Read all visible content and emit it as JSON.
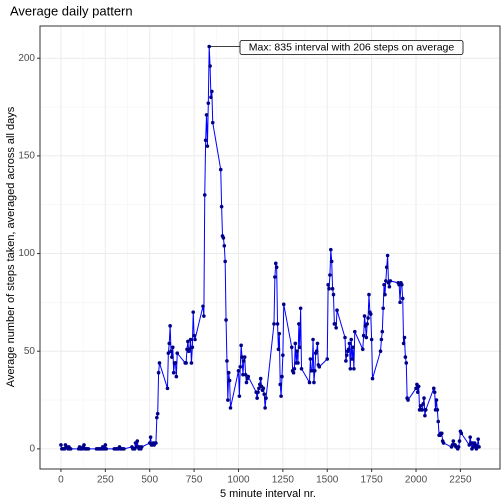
{
  "chart_data": {
    "type": "line",
    "title": "Average daily pattern",
    "x_label": "5 minute interval nr.",
    "y_label": "Average number of steps taken, averaged across all days",
    "annotation": "Max: 835 interval with 206 steps on average",
    "x": [
      0,
      5,
      10,
      15,
      20,
      25,
      30,
      35,
      40,
      45,
      50,
      55,
      100,
      105,
      110,
      115,
      120,
      125,
      130,
      135,
      140,
      145,
      150,
      155,
      200,
      205,
      210,
      215,
      220,
      225,
      230,
      235,
      240,
      245,
      250,
      255,
      300,
      305,
      310,
      315,
      320,
      325,
      330,
      335,
      340,
      345,
      350,
      355,
      400,
      405,
      410,
      415,
      420,
      425,
      430,
      435,
      440,
      445,
      450,
      455,
      500,
      505,
      510,
      515,
      520,
      525,
      530,
      535,
      540,
      545,
      550,
      555,
      600,
      605,
      610,
      615,
      620,
      625,
      630,
      635,
      640,
      645,
      650,
      655,
      700,
      705,
      710,
      715,
      720,
      725,
      730,
      735,
      740,
      745,
      750,
      755,
      800,
      805,
      810,
      815,
      820,
      825,
      830,
      835,
      840,
      845,
      850,
      855,
      900,
      905,
      910,
      915,
      920,
      925,
      930,
      935,
      940,
      945,
      950,
      955,
      1000,
      1005,
      1010,
      1015,
      1020,
      1025,
      1030,
      1035,
      1040,
      1045,
      1050,
      1055,
      1100,
      1105,
      1110,
      1115,
      1120,
      1125,
      1130,
      1135,
      1140,
      1145,
      1150,
      1155,
      1200,
      1205,
      1210,
      1215,
      1220,
      1225,
      1230,
      1235,
      1240,
      1245,
      1250,
      1255,
      1300,
      1305,
      1310,
      1315,
      1320,
      1325,
      1330,
      1335,
      1340,
      1345,
      1350,
      1355,
      1400,
      1405,
      1410,
      1415,
      1420,
      1425,
      1430,
      1435,
      1440,
      1445,
      1450,
      1455,
      1500,
      1505,
      1510,
      1515,
      1520,
      1525,
      1530,
      1535,
      1540,
      1545,
      1550,
      1555,
      1600,
      1605,
      1610,
      1615,
      1620,
      1625,
      1630,
      1635,
      1640,
      1645,
      1650,
      1655,
      1700,
      1705,
      1710,
      1715,
      1720,
      1725,
      1730,
      1735,
      1740,
      1745,
      1750,
      1755,
      1800,
      1805,
      1810,
      1815,
      1820,
      1825,
      1830,
      1835,
      1840,
      1845,
      1850,
      1855,
      1900,
      1905,
      1910,
      1915,
      1920,
      1925,
      1930,
      1935,
      1940,
      1945,
      1950,
      1955,
      2000,
      2005,
      2010,
      2015,
      2020,
      2025,
      2030,
      2035,
      2040,
      2045,
      2050,
      2055,
      2100,
      2105,
      2110,
      2115,
      2120,
      2125,
      2130,
      2135,
      2140,
      2145,
      2150,
      2155,
      2200,
      2205,
      2210,
      2215,
      2220,
      2225,
      2230,
      2235,
      2240,
      2245,
      2250,
      2255,
      2300,
      2305,
      2310,
      2315,
      2320,
      2325,
      2330,
      2335,
      2340,
      2345,
      2350,
      2355
    ],
    "series": [
      {
        "name": "steps",
        "color": "#0000ff",
        "marker_color": "#00008b",
        "values": [
          2,
          0,
          0,
          0,
          0,
          2,
          1,
          1,
          0,
          1,
          0,
          0,
          0,
          1,
          0,
          0,
          0,
          1,
          2,
          0,
          0,
          0,
          0,
          0,
          0,
          0,
          0,
          0,
          0,
          0,
          0,
          1,
          0,
          0,
          2,
          0,
          0,
          0,
          0,
          0,
          0,
          0,
          1,
          0,
          0,
          0,
          0,
          0,
          1,
          0,
          0,
          0,
          3,
          1,
          4,
          1,
          0,
          1,
          0,
          1,
          3,
          6,
          2,
          2,
          3,
          2,
          3,
          3,
          16,
          18,
          39,
          44,
          31,
          49,
          54,
          63,
          50,
          47,
          52,
          39,
          44,
          44,
          37,
          49,
          44,
          44,
          51,
          55,
          50,
          51,
          56,
          44,
          52,
          70,
          58,
          56,
          73,
          68,
          130,
          158,
          171,
          155,
          177,
          206,
          196,
          180,
          183,
          167,
          143,
          124,
          109,
          108,
          104,
          96,
          66,
          45,
          25,
          39,
          35,
          21,
          40,
          27,
          42,
          53,
          47,
          38,
          45,
          47,
          38,
          34,
          36,
          37,
          29,
          26,
          29,
          31,
          33,
          36,
          32,
          30,
          31,
          28,
          21,
          26,
          64,
          88,
          95,
          93,
          64,
          51,
          59,
          33,
          27,
          37,
          48,
          74,
          52,
          40,
          39,
          41,
          54,
          44,
          50,
          44,
          64,
          52,
          72,
          41,
          34,
          46,
          40,
          40,
          56,
          34,
          40,
          49,
          50,
          54,
          43,
          42,
          46,
          84,
          82,
          89,
          102,
          96,
          82,
          79,
          64,
          64,
          62,
          71,
          57,
          45,
          48,
          50,
          51,
          54,
          41,
          56,
          46,
          52,
          41,
          60,
          51,
          58,
          68,
          63,
          57,
          64,
          67,
          79,
          70,
          69,
          56,
          36,
          50,
          56,
          60,
          72,
          84,
          79,
          86,
          93,
          99,
          85,
          83,
          86,
          85,
          84,
          75,
          85,
          84,
          77,
          54,
          57,
          47,
          44,
          26,
          25,
          31,
          33,
          29,
          32,
          20,
          22,
          20,
          20,
          23,
          26,
          17,
          20,
          31,
          29,
          20,
          25,
          20,
          14,
          7,
          7,
          8,
          8,
          4,
          3,
          1,
          2,
          4,
          2,
          2,
          1,
          1,
          0,
          1,
          4,
          9,
          8,
          2,
          6,
          3,
          0,
          3,
          1,
          3,
          2,
          0,
          1,
          5,
          1
        ]
      }
    ],
    "xlim": [
      -118,
      2473
    ],
    "ylim": [
      -10.3,
      216.5
    ],
    "xticks": [
      0,
      250,
      500,
      750,
      1000,
      1250,
      1500,
      1750,
      2000,
      2250
    ],
    "yticks": [
      0,
      50,
      100,
      150,
      200
    ],
    "grid": true
  }
}
